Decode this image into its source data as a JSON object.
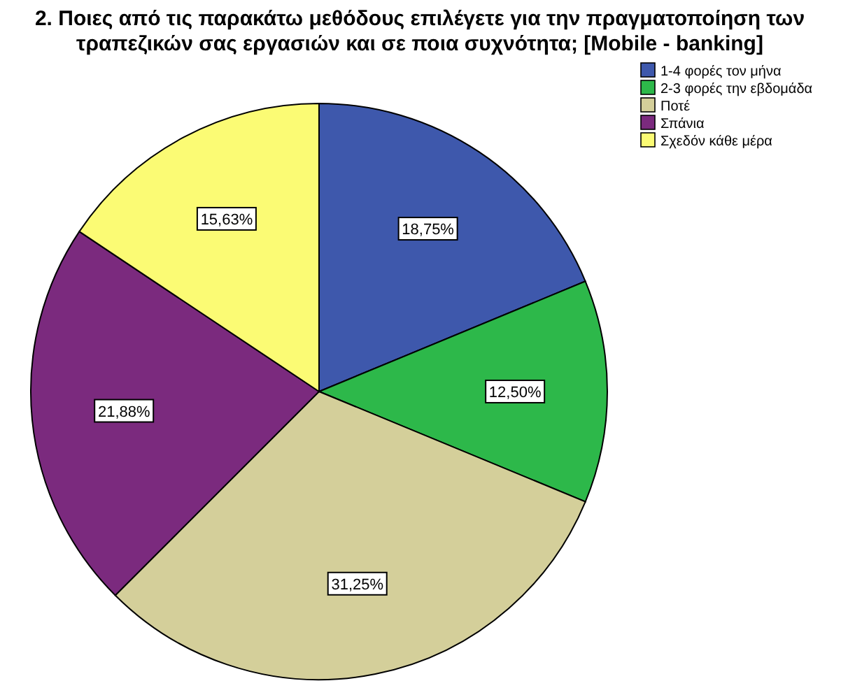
{
  "chart_data": {
    "type": "pie",
    "title": "2. Ποιες από τις παρακάτω μεθόδους επιλέγετε για την πραγματοποίηση των τραπεζικών σας εργασιών και σε ποια συχνότητα; [Mobile - banking]",
    "categories": [
      "1-4 φορές τον μήνα",
      "2-3 φορές την εβδομάδα",
      "Ποτέ",
      "Σπάνια",
      "Σχεδόν κάθε μέρα"
    ],
    "values": [
      18.75,
      12.5,
      31.25,
      21.88,
      15.63
    ],
    "value_labels": [
      "18,75%",
      "12,50%",
      "31,25%",
      "21,88%",
      "15,63%"
    ],
    "colors": [
      "#3e58ac",
      "#2db84a",
      "#d4cf9a",
      "#7b2a7e",
      "#fbfb74"
    ],
    "legend": "top right"
  }
}
